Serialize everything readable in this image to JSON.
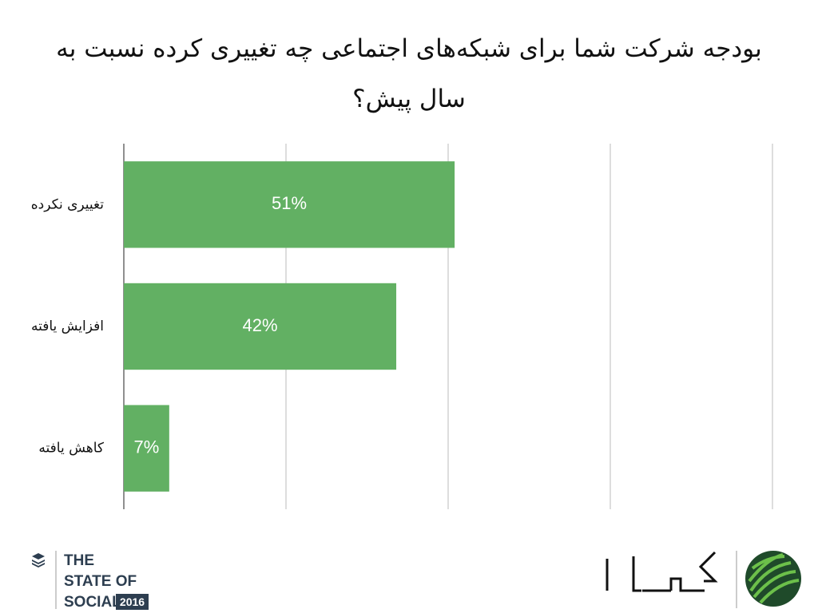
{
  "chart_data": {
    "type": "bar",
    "orientation": "horizontal",
    "title": "بودجه شرکت شما برای شبکه‌های اجتماعی چه تغییری کرده نسبت به سال پیش؟",
    "categories": [
      "تغییری نکرده",
      "افزایش یافته",
      "کاهش یافته"
    ],
    "values": [
      51,
      42,
      7
    ],
    "value_labels": [
      "51%",
      "42%",
      "7%"
    ],
    "color": "#62b063",
    "xlim": [
      0,
      100
    ],
    "xticks": [
      0,
      25,
      50,
      75,
      100
    ],
    "grid": true
  },
  "footer": {
    "brand_lines": [
      "THE",
      "STATE OF",
      "SOCIAL"
    ],
    "year": "2016"
  }
}
